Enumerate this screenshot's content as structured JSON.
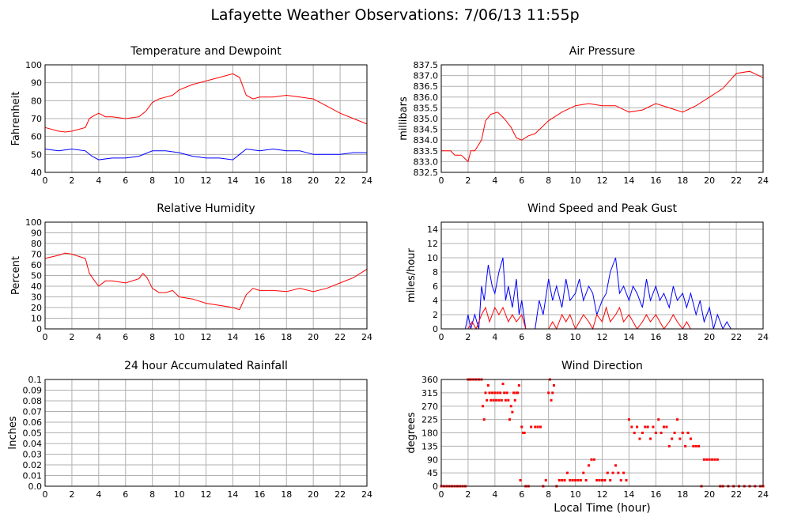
{
  "page": {
    "title": "Lafayette Weather Observations: 7/06/13 11:55p",
    "x_axis_label": "Local Time (hour)"
  },
  "colors": {
    "red": "#ff0000",
    "blue": "#0000ff",
    "grid": "#b0b0b0"
  },
  "chart_data": [
    {
      "id": "temp",
      "type": "line",
      "title": "Temperature and Dewpoint",
      "xlabel": "",
      "ylabel": "Fahrenheit",
      "xlim": [
        0,
        24
      ],
      "ylim": [
        40,
        100
      ],
      "xticks": [
        0,
        2,
        4,
        6,
        8,
        10,
        12,
        14,
        16,
        18,
        20,
        22,
        24
      ],
      "yticks": [
        40,
        50,
        60,
        70,
        80,
        90,
        100
      ],
      "ytick_labels": [
        "40",
        "50",
        "60",
        "70",
        "80",
        "90",
        "100"
      ],
      "grid": true,
      "series": [
        {
          "color": "#ff0000",
          "x": [
            0,
            1,
            1.5,
            2,
            3,
            3.3,
            3.5,
            4,
            4.5,
            5,
            6,
            7,
            7.5,
            8,
            8.5,
            9,
            9.5,
            10,
            11,
            12,
            13,
            13.5,
            14,
            14.5,
            15,
            15.5,
            16,
            17,
            18,
            19,
            20,
            21,
            22,
            23,
            24
          ],
          "y": [
            65,
            63,
            62.5,
            63,
            65,
            70,
            71,
            73,
            71,
            71,
            70,
            71,
            74,
            79,
            81,
            82,
            83,
            86,
            89,
            91,
            93,
            94,
            95,
            93,
            83,
            81,
            82,
            82,
            83,
            82,
            81,
            77,
            73,
            70,
            67
          ]
        },
        {
          "color": "#0000ff",
          "x": [
            0,
            1,
            2,
            3,
            3.5,
            4,
            5,
            6,
            7,
            8,
            9,
            10,
            11,
            12,
            13,
            14,
            14.5,
            15,
            16,
            17,
            18,
            19,
            20,
            21,
            22,
            23,
            24
          ],
          "y": [
            53,
            52,
            53,
            52,
            49,
            47,
            48,
            48,
            49,
            52,
            52,
            51,
            49,
            48,
            48,
            47,
            50,
            53,
            52,
            53,
            52,
            52,
            50,
            50,
            50,
            51,
            51
          ]
        }
      ]
    },
    {
      "id": "pressure",
      "type": "line",
      "title": "Air Pressure",
      "xlabel": "",
      "ylabel": "millibars",
      "xlim": [
        0,
        24
      ],
      "ylim": [
        832.5,
        837.5
      ],
      "xticks": [
        0,
        2,
        4,
        6,
        8,
        10,
        12,
        14,
        16,
        18,
        20,
        22,
        24
      ],
      "yticks": [
        832.5,
        833.0,
        833.5,
        834.0,
        834.5,
        835.0,
        835.5,
        836.0,
        836.5,
        837.0,
        837.5
      ],
      "ytick_labels": [
        "832.5",
        "833.0",
        "833.5",
        "834.0",
        "834.5",
        "835.0",
        "835.5",
        "836.0",
        "836.5",
        "837.0",
        "837.5"
      ],
      "grid": true,
      "series": [
        {
          "color": "#ff0000",
          "x": [
            0,
            0.7,
            1,
            1.5,
            2,
            2.2,
            2.5,
            3,
            3.3,
            3.7,
            4.2,
            4.7,
            5.2,
            5.6,
            6,
            6.5,
            7,
            7.5,
            8,
            9,
            10,
            11,
            12,
            13,
            14,
            15,
            16,
            17,
            18,
            19,
            20,
            21,
            22,
            23,
            24
          ],
          "y": [
            833.5,
            833.5,
            833.3,
            833.3,
            833.0,
            833.5,
            833.5,
            834.0,
            834.9,
            835.2,
            835.3,
            835.0,
            834.6,
            834.1,
            834.0,
            834.2,
            834.3,
            834.6,
            834.9,
            835.3,
            835.6,
            835.7,
            835.6,
            835.6,
            835.3,
            835.4,
            835.7,
            835.5,
            835.3,
            835.6,
            836.0,
            836.4,
            837.1,
            837.2,
            836.9
          ]
        }
      ]
    },
    {
      "id": "humidity",
      "type": "line",
      "title": "Relative Humidity",
      "xlabel": "",
      "ylabel": "Percent",
      "xlim": [
        0,
        24
      ],
      "ylim": [
        0,
        100
      ],
      "xticks": [
        0,
        2,
        4,
        6,
        8,
        10,
        12,
        14,
        16,
        18,
        20,
        22,
        24
      ],
      "yticks": [
        0,
        10,
        20,
        30,
        40,
        50,
        60,
        70,
        80,
        90,
        100
      ],
      "ytick_labels": [
        "0",
        "10",
        "20",
        "30",
        "40",
        "50",
        "60",
        "70",
        "80",
        "90",
        "100"
      ],
      "grid": true,
      "series": [
        {
          "color": "#ff0000",
          "x": [
            0,
            1,
            1.5,
            2,
            3,
            3.3,
            3.7,
            4,
            4.5,
            5,
            6,
            7,
            7.3,
            7.6,
            8,
            8.5,
            9,
            9.5,
            10,
            11,
            12,
            13,
            14,
            14.5,
            15,
            15.5,
            16,
            17,
            18,
            19,
            20,
            21,
            22,
            23,
            24
          ],
          "y": [
            66,
            69,
            71,
            70,
            66,
            52,
            45,
            40,
            45,
            45,
            43,
            47,
            52,
            48,
            38,
            34,
            34,
            36,
            30,
            28,
            24,
            22,
            20,
            18,
            32,
            38,
            36,
            36,
            35,
            38,
            35,
            38,
            43,
            48,
            56
          ]
        }
      ]
    },
    {
      "id": "wind",
      "type": "line",
      "title": "Wind Speed and Peak Gust",
      "xlabel": "",
      "ylabel": "miles/hour",
      "xlim": [
        0,
        24
      ],
      "ylim": [
        0,
        15
      ],
      "xticks": [
        0,
        2,
        4,
        6,
        8,
        10,
        12,
        14,
        16,
        18,
        20,
        22,
        24
      ],
      "yticks": [
        0,
        2,
        4,
        6,
        8,
        10,
        12,
        14
      ],
      "ytick_labels": [
        "0",
        "2",
        "4",
        "6",
        "8",
        "10",
        "12",
        "14"
      ],
      "grid": true,
      "series": [
        {
          "color": "#0000ff",
          "x": [
            0,
            1.8,
            2,
            2.2,
            2.5,
            2.8,
            3.0,
            3.2,
            3.5,
            3.8,
            4.0,
            4.3,
            4.6,
            4.8,
            5.0,
            5.3,
            5.6,
            5.8,
            6.0,
            6.3,
            6.6,
            7.0,
            7.3,
            7.6,
            8.0,
            8.3,
            8.6,
            9.0,
            9.3,
            9.6,
            10.0,
            10.3,
            10.6,
            11.0,
            11.3,
            11.6,
            12.0,
            12.3,
            12.6,
            13.0,
            13.3,
            13.6,
            14.0,
            14.3,
            14.6,
            15.0,
            15.3,
            15.6,
            16.0,
            16.3,
            16.6,
            17.0,
            17.3,
            17.6,
            18.0,
            18.3,
            18.6,
            19.0,
            19.3,
            19.6,
            20.0,
            20.3,
            20.6,
            21.0,
            21.3,
            21.6,
            24
          ],
          "y": [
            0,
            0,
            2,
            0,
            2,
            0,
            6,
            4,
            9,
            6,
            5,
            8,
            10,
            4,
            6,
            3,
            7,
            2,
            4,
            0,
            0,
            0,
            4,
            2,
            7,
            4,
            6,
            3,
            7,
            4,
            5,
            7,
            4,
            6,
            5,
            2,
            4,
            5,
            8,
            10,
            5,
            6,
            4,
            6,
            5,
            3,
            7,
            4,
            6,
            4,
            5,
            3,
            6,
            4,
            5,
            3,
            5,
            2,
            4,
            1,
            3,
            0,
            2,
            0,
            1,
            0,
            0
          ]
        },
        {
          "color": "#ff0000",
          "x": [
            0,
            2.0,
            2.3,
            2.6,
            3.0,
            3.3,
            3.6,
            4.0,
            4.3,
            4.6,
            5.0,
            5.3,
            5.6,
            6.0,
            6.3,
            8.0,
            8.3,
            8.6,
            9.0,
            9.3,
            9.6,
            10.0,
            10.3,
            10.6,
            11.0,
            11.3,
            11.6,
            12.0,
            12.3,
            12.6,
            13.0,
            13.3,
            13.6,
            14.0,
            14.3,
            14.6,
            15.0,
            15.3,
            15.6,
            16.0,
            16.3,
            16.6,
            17.0,
            17.3,
            17.6,
            18.0,
            18.3,
            18.6,
            19.0,
            24
          ],
          "y": [
            0,
            0,
            1,
            0,
            2,
            3,
            1,
            3,
            2,
            3,
            1,
            2,
            1,
            2,
            0,
            0,
            1,
            0,
            2,
            1,
            2,
            0,
            1,
            2,
            1,
            0,
            2,
            1,
            3,
            1,
            2,
            3,
            1,
            2,
            1,
            0,
            1,
            2,
            1,
            2,
            1,
            0,
            1,
            2,
            1,
            0,
            1,
            0,
            0,
            0
          ]
        }
      ]
    },
    {
      "id": "rain",
      "type": "line",
      "title": "24 hour Accumulated Rainfall",
      "xlabel": "",
      "ylabel": "Inches",
      "xlim": [
        0,
        24
      ],
      "ylim": [
        0,
        0.1
      ],
      "xticks": [
        0,
        2,
        4,
        6,
        8,
        10,
        12,
        14,
        16,
        18,
        20,
        22,
        24
      ],
      "yticks": [
        0,
        0.01,
        0.02,
        0.03,
        0.04,
        0.05,
        0.06,
        0.07,
        0.08,
        0.09,
        0.1
      ],
      "ytick_labels": [
        "0.0",
        "0.01",
        "0.02",
        "0.03",
        "0.04",
        "0.05",
        "0.06",
        "0.07",
        "0.08",
        "0.09",
        "0.1"
      ],
      "grid": true,
      "series": [
        {
          "color": "#ff0000",
          "x": [
            0,
            24
          ],
          "y": [
            0,
            0
          ]
        }
      ]
    },
    {
      "id": "winddir",
      "type": "scatter",
      "title": "Wind Direction",
      "xlabel": "Local Time (hour)",
      "ylabel": "degrees",
      "xlim": [
        0,
        24
      ],
      "ylim": [
        0,
        360
      ],
      "xticks": [
        0,
        2,
        4,
        6,
        8,
        10,
        12,
        14,
        16,
        18,
        20,
        22,
        24
      ],
      "yticks": [
        0,
        45,
        90,
        135,
        180,
        225,
        270,
        315,
        360
      ],
      "ytick_labels": [
        "0",
        "45",
        "90",
        "135",
        "180",
        "225",
        "270",
        "315",
        "360"
      ],
      "grid": true,
      "series": [
        {
          "color": "#ff0000",
          "x": [
            0,
            0.2,
            0.4,
            0.6,
            0.8,
            1.0,
            1.2,
            1.4,
            1.6,
            1.8,
            2.0,
            2.1,
            2.2,
            2.4,
            2.6,
            2.8,
            3.0,
            3.1,
            3.2,
            3.3,
            3.4,
            3.5,
            3.6,
            3.7,
            3.8,
            3.9,
            4.0,
            4.1,
            4.2,
            4.3,
            4.4,
            4.5,
            4.6,
            4.7,
            4.8,
            4.9,
            5.0,
            5.1,
            5.2,
            5.3,
            5.4,
            5.5,
            5.6,
            5.7,
            5.8,
            5.9,
            6.0,
            6.1,
            6.2,
            6.3,
            6.5,
            6.7,
            7.0,
            7.2,
            7.4,
            7.6,
            7.8,
            8.0,
            8.1,
            8.2,
            8.3,
            8.4,
            8.6,
            8.8,
            9.0,
            9.2,
            9.4,
            9.6,
            9.8,
            10.0,
            10.2,
            10.4,
            10.6,
            10.8,
            11.0,
            11.2,
            11.4,
            11.6,
            11.8,
            12.0,
            12.2,
            12.4,
            12.6,
            12.8,
            13.0,
            13.2,
            13.4,
            13.6,
            13.8,
            14.0,
            14.2,
            14.4,
            14.6,
            14.8,
            15.0,
            15.2,
            15.4,
            15.6,
            15.8,
            16.0,
            16.2,
            16.4,
            16.6,
            16.8,
            17.0,
            17.2,
            17.4,
            17.6,
            17.8,
            18.0,
            18.2,
            18.4,
            18.6,
            18.8,
            19.0,
            19.2,
            19.4,
            19.6,
            19.8,
            20.0,
            20.2,
            20.4,
            20.6,
            20.8,
            21.0,
            21.4,
            21.8,
            22.2,
            22.6,
            23.0,
            23.4,
            23.8,
            24.0
          ],
          "y": [
            0,
            0,
            0,
            0,
            0,
            0,
            0,
            0,
            0,
            0,
            360,
            360,
            360,
            360,
            360,
            360,
            360,
            270,
            225,
            315,
            290,
            340,
            315,
            290,
            315,
            290,
            315,
            290,
            315,
            290,
            315,
            290,
            345,
            315,
            290,
            315,
            290,
            225,
            270,
            250,
            315,
            290,
            315,
            315,
            340,
            20,
            200,
            180,
            180,
            0,
            0,
            200,
            200,
            200,
            200,
            0,
            20,
            315,
            360,
            290,
            315,
            340,
            0,
            20,
            20,
            20,
            45,
            20,
            20,
            20,
            20,
            20,
            45,
            20,
            70,
            90,
            90,
            20,
            20,
            20,
            20,
            45,
            20,
            45,
            70,
            45,
            20,
            45,
            20,
            225,
            200,
            180,
            200,
            160,
            180,
            200,
            200,
            160,
            200,
            180,
            225,
            180,
            200,
            200,
            135,
            160,
            180,
            225,
            160,
            180,
            135,
            180,
            160,
            135,
            135,
            135,
            0,
            90,
            90,
            90,
            90,
            90,
            90,
            0,
            0,
            0,
            0,
            0,
            0,
            0,
            0,
            0,
            0
          ]
        }
      ]
    }
  ]
}
